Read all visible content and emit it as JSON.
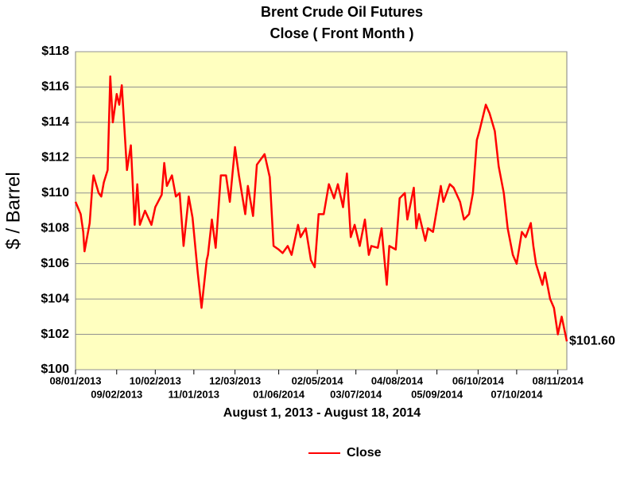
{
  "chart_data": {
    "type": "line",
    "title": "Brent Crude Oil Futures",
    "subtitle": "Close ( Front Month )",
    "ylabel": "$ / Barrel",
    "xlabel": "August 1, 2013 - August 18, 2014",
    "x": [
      "08/01/2013",
      "08/05/2013",
      "08/07/2013",
      "08/08/2013",
      "08/12/2013",
      "08/14/2013",
      "08/15/2013",
      "08/19/2013",
      "08/21/2013",
      "08/23/2013",
      "08/26/2013",
      "08/28/2013",
      "08/30/2013",
      "09/02/2013",
      "09/04/2013",
      "09/06/2013",
      "09/10/2013",
      "09/13/2013",
      "09/16/2013",
      "09/18/2013",
      "09/20/2013",
      "09/24/2013",
      "09/29/2013",
      "10/02/2013",
      "10/07/2013",
      "10/09/2013",
      "10/11/2013",
      "10/15/2013",
      "10/18/2013",
      "10/21/2013",
      "10/24/2013",
      "10/28/2013",
      "10/31/2013",
      "11/04/2013",
      "11/07/2013",
      "11/11/2013",
      "11/12/2013",
      "11/15/2013",
      "11/18/2013",
      "11/22/2013",
      "11/26/2013",
      "11/29/2013",
      "12/03/2013",
      "12/06/2013",
      "12/11/2013",
      "12/13/2013",
      "12/17/2013",
      "12/20/2013",
      "12/26/2013",
      "12/30/2013",
      "01/02/2014",
      "01/06/2014",
      "01/09/2014",
      "01/13/2014",
      "01/16/2014",
      "01/21/2014",
      "01/23/2014",
      "01/27/2014",
      "01/31/2014",
      "02/03/2014",
      "02/06/2014",
      "02/10/2014",
      "02/14/2014",
      "02/18/2014",
      "02/21/2014",
      "02/25/2014",
      "02/28/2014",
      "03/03/2014",
      "03/06/2014",
      "03/10/2014",
      "03/14/2014",
      "03/17/2014",
      "03/19/2014",
      "03/24/2014",
      "03/27/2014",
      "03/31/2014",
      "04/02/2014",
      "04/07/2014",
      "04/10/2014",
      "04/14/2014",
      "04/16/2014",
      "04/21/2014",
      "04/23/2014",
      "04/25/2014",
      "04/30/2014",
      "05/02/2014",
      "05/06/2014",
      "05/12/2014",
      "05/14/2014",
      "05/19/2014",
      "05/22/2014",
      "05/27/2014",
      "05/30/2014",
      "06/03/2014",
      "06/06/2014",
      "06/09/2014",
      "06/11/2014",
      "06/16/2014",
      "06/19/2014",
      "06/23/2014",
      "06/26/2014",
      "06/30/2014",
      "07/03/2014",
      "07/07/2014",
      "07/10/2014",
      "07/14/2014",
      "07/17/2014",
      "07/21/2014",
      "07/23/2014",
      "07/25/2014",
      "07/30/2014",
      "08/01/2014",
      "08/05/2014",
      "08/08/2014",
      "08/11/2014",
      "08/14/2014",
      "08/18/2014"
    ],
    "series": [
      {
        "name": "Close",
        "color": "#ff0000",
        "values": [
          109.5,
          108.8,
          107.8,
          106.7,
          108.3,
          110.3,
          111.0,
          110.0,
          109.8,
          110.6,
          111.3,
          116.6,
          114.0,
          115.6,
          115.0,
          116.1,
          111.3,
          112.7,
          108.2,
          110.5,
          108.2,
          109.0,
          108.2,
          109.2,
          109.9,
          111.7,
          110.4,
          111.0,
          109.8,
          110.0,
          107.0,
          109.8,
          108.6,
          105.5,
          103.5,
          106.2,
          106.5,
          108.5,
          106.9,
          111.0,
          111.0,
          109.5,
          112.6,
          111.0,
          108.8,
          110.4,
          108.7,
          111.6,
          112.2,
          110.9,
          107.0,
          106.8,
          106.6,
          107.0,
          106.5,
          108.2,
          107.5,
          108.0,
          106.2,
          105.8,
          108.8,
          108.8,
          110.5,
          109.7,
          110.5,
          109.2,
          111.1,
          107.5,
          108.2,
          107.0,
          108.5,
          106.5,
          107.0,
          106.9,
          108.0,
          104.8,
          107.0,
          106.8,
          109.7,
          110.0,
          108.5,
          110.3,
          108.0,
          108.8,
          107.3,
          108.0,
          107.8,
          110.4,
          109.5,
          110.5,
          110.3,
          109.5,
          108.5,
          108.8,
          110.0,
          113.0,
          113.5,
          115.0,
          114.5,
          113.5,
          111.5,
          110.0,
          108.0,
          106.5,
          106.0,
          107.8,
          107.5,
          108.3,
          107.0,
          106.0,
          104.8,
          105.5,
          104.0,
          103.5,
          102.0,
          103.0,
          101.6
        ],
        "value_labels": [
          null,
          null,
          null,
          null,
          null,
          null,
          null,
          null,
          null,
          null,
          null,
          null,
          null,
          null,
          null,
          null,
          null,
          null,
          null,
          null,
          null,
          null,
          null,
          null,
          null,
          null,
          null,
          null,
          null,
          null,
          null,
          null,
          null,
          null,
          null,
          null,
          null,
          null,
          null,
          null,
          null,
          null,
          null,
          null,
          null,
          null,
          null,
          null,
          null,
          null,
          null,
          null,
          null,
          null,
          null,
          null,
          null,
          null,
          null,
          null,
          null,
          null,
          null,
          null,
          null,
          null,
          null,
          null,
          null,
          null,
          null,
          null,
          null,
          null,
          null,
          null,
          null,
          null,
          null,
          null,
          null,
          null,
          null,
          null,
          null,
          null,
          null,
          null,
          null,
          null,
          null,
          null,
          null,
          null,
          null,
          null,
          null,
          null,
          null,
          null,
          null,
          null,
          null,
          null,
          null,
          null,
          null,
          null,
          null,
          null,
          null,
          null,
          null,
          null,
          null,
          null,
          "$101.60"
        ]
      }
    ],
    "xlim": [
      "08/01/2013",
      "08/18/2014"
    ],
    "xticks": [
      "08/01/2013",
      "09/02/2013",
      "10/02/2013",
      "11/01/2013",
      "12/03/2013",
      "01/06/2014",
      "02/05/2014",
      "03/07/2014",
      "04/08/2014",
      "05/09/2014",
      "06/10/2014",
      "07/10/2014",
      "08/11/2014"
    ],
    "ylim": [
      100,
      118
    ],
    "yticks": [
      {
        "value": 100,
        "label": "$100"
      },
      {
        "value": 102,
        "label": "$102"
      },
      {
        "value": 104,
        "label": "$104"
      },
      {
        "value": 106,
        "label": "$106"
      },
      {
        "value": 108,
        "label": "$108"
      },
      {
        "value": 110,
        "label": "$110"
      },
      {
        "value": 112,
        "label": "$112"
      },
      {
        "value": 114,
        "label": "$114"
      },
      {
        "value": 116,
        "label": "$116"
      },
      {
        "value": 118,
        "label": "$118"
      }
    ],
    "grid": true,
    "plot_background": "#ffffc0",
    "legend": "bottom"
  }
}
